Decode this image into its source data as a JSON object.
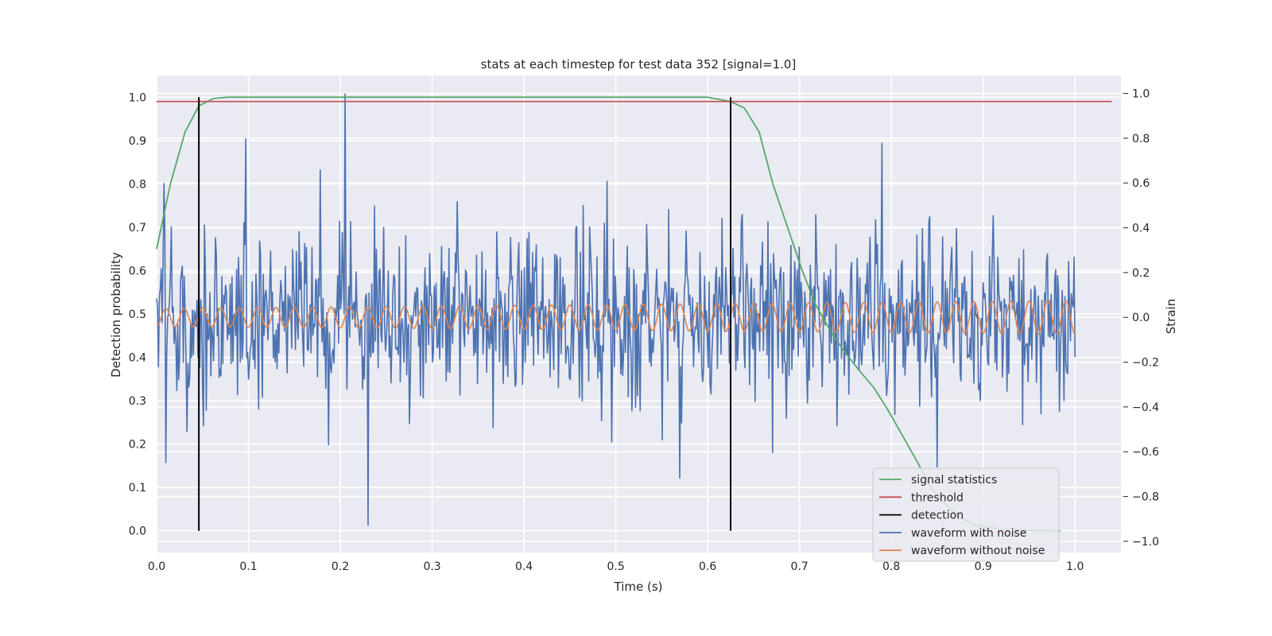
{
  "chart_data": {
    "type": "line",
    "title": "stats at each timestep for test data 352 [signal=1.0]",
    "xlabel": "Time (s)",
    "ylabel": "Detection probability",
    "y2label": "Strain",
    "xlim": [
      0.0,
      1.05
    ],
    "ylim": [
      -0.05,
      1.05
    ],
    "y2lim": [
      -1.05,
      1.08
    ],
    "xticks": [
      "0.0",
      "0.1",
      "0.2",
      "0.3",
      "0.4",
      "0.5",
      "0.6",
      "0.7",
      "0.8",
      "0.9",
      "1.0"
    ],
    "yticks": [
      "0.0",
      "0.1",
      "0.2",
      "0.3",
      "0.4",
      "0.5",
      "0.6",
      "0.7",
      "0.8",
      "0.9",
      "1.0"
    ],
    "y2ticks": [
      "−1.0",
      "−0.8",
      "−0.6",
      "−0.4",
      "−0.2",
      "0.0",
      "0.2",
      "0.4",
      "0.6",
      "0.8",
      "1.0"
    ],
    "grid": true,
    "legend_position": "lower-right",
    "colors": {
      "signal": "#55a868",
      "threshold": "#c44e52",
      "detection": "#000000",
      "noisy": "#4c72b0",
      "clean": "#dd8452",
      "plot_bg": "#eaeaf2",
      "grid": "#ffffff"
    },
    "legend": [
      {
        "label": "signal statistics",
        "color": "#55a868"
      },
      {
        "label": "threshold",
        "color": "#c44e52"
      },
      {
        "label": "detection",
        "color": "#000000"
      },
      {
        "label": "waveform with noise",
        "color": "#4c72b0"
      },
      {
        "label": "waveform without noise",
        "color": "#dd8452"
      }
    ],
    "series": [
      {
        "name": "signal statistics",
        "axis": "left",
        "x": [
          0.0,
          0.015,
          0.031,
          0.046,
          0.062,
          0.077,
          0.6,
          0.625,
          0.64,
          0.656,
          0.671,
          0.687,
          0.703,
          0.718,
          0.734,
          0.75,
          0.765,
          0.781,
          0.796,
          0.812,
          0.828,
          0.843,
          0.859,
          0.875,
          0.89,
          0.906,
          0.921,
          0.937,
          0.953,
          0.968,
          0.984
        ],
        "y": [
          0.65,
          0.8,
          0.92,
          0.98,
          0.997,
          1.0,
          1.0,
          0.99,
          0.975,
          0.92,
          0.8,
          0.7,
          0.6,
          0.52,
          0.46,
          0.41,
          0.37,
          0.33,
          0.28,
          0.22,
          0.16,
          0.1,
          0.06,
          0.03,
          0.015,
          0.008,
          0.004,
          0.002,
          0.001,
          0.0,
          0.0
        ]
      },
      {
        "name": "threshold",
        "axis": "left",
        "x": [
          0.0,
          1.04
        ],
        "y": [
          0.99,
          0.99
        ]
      }
    ],
    "detections": [
      {
        "x": 0.046,
        "y0": 0.0,
        "y1": 1.0
      },
      {
        "x": 0.625,
        "y0": 0.0,
        "y1": 1.0
      }
    ],
    "noisy_waveform": {
      "name": "waveform with noise",
      "axis": "right",
      "x_start": 0.0,
      "x_end": 1.0,
      "points": 1000,
      "std": 0.19,
      "peaks": [
        {
          "x": 0.008,
          "y": 0.6
        },
        {
          "x": 0.01,
          "y": -0.65
        },
        {
          "x": 0.097,
          "y": 0.8
        },
        {
          "x": 0.178,
          "y": 0.66
        },
        {
          "x": 0.205,
          "y": 1.0
        },
        {
          "x": 0.23,
          "y": -0.93
        },
        {
          "x": 0.49,
          "y": 0.61
        },
        {
          "x": 0.57,
          "y": -0.72
        },
        {
          "x": 0.79,
          "y": 0.78
        },
        {
          "x": 0.85,
          "y": -0.67
        }
      ]
    },
    "clean_waveform": {
      "name": "waveform without noise",
      "axis": "right",
      "x_start": 0.0,
      "x_end": 1.0,
      "cycles": 50,
      "amp_start": 0.04,
      "amp_end": 0.075
    }
  }
}
